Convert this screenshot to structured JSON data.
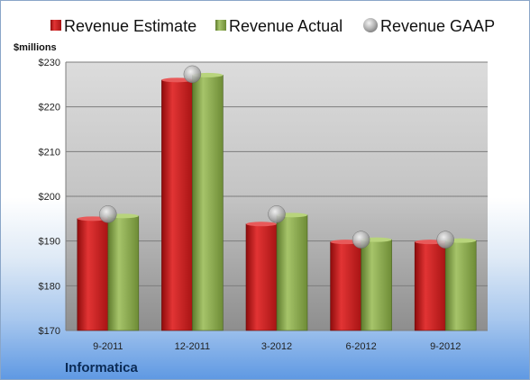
{
  "chart_data": {
    "type": "bar",
    "categories": [
      "9-2011",
      "12-2011",
      "3-2012",
      "6-2012",
      "9-2012"
    ],
    "series": [
      {
        "name": "Revenue Estimate",
        "values": [
          195.0,
          226.0,
          193.8,
          189.8,
          189.8
        ],
        "color": "#c81a1a"
      },
      {
        "name": "Revenue Actual",
        "values": [
          195.6,
          227.1,
          195.8,
          190.3,
          190.1
        ],
        "color": "#86a84a"
      },
      {
        "name": "Revenue GAAP",
        "values": [
          196.0,
          227.3,
          196.0,
          190.3,
          190.3
        ],
        "color": "#bfbfbf",
        "marker": "circle"
      }
    ],
    "ylabel": "$millions",
    "ylim": [
      170,
      230
    ],
    "yticks": [
      170,
      180,
      190,
      200,
      210,
      220,
      230
    ],
    "ytick_labels": [
      "$170",
      "$180",
      "$190",
      "$200",
      "$210",
      "$220",
      "$230"
    ],
    "grid": true,
    "legend_position": "top"
  },
  "footer": {
    "company": "Informatica"
  }
}
